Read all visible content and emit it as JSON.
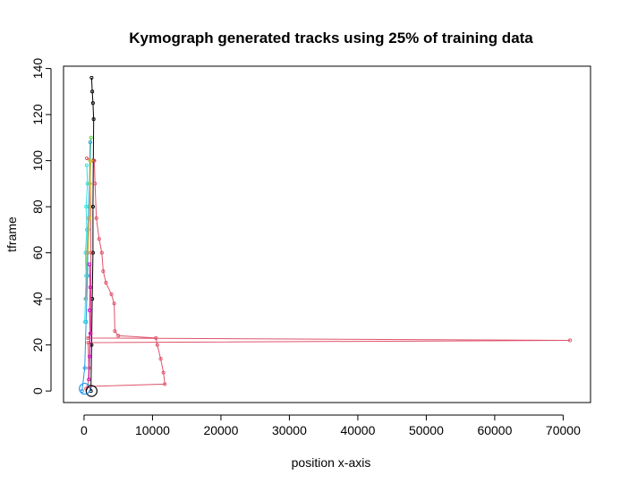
{
  "chart_data": {
    "type": "line",
    "title": "Kymograph generated tracks using 25% of training data",
    "xlabel": "position x-axis",
    "ylabel": "tframe",
    "xlim": [
      -3000,
      74000
    ],
    "ylim": [
      -5,
      141
    ],
    "xticks": [
      "0",
      "10000",
      "20000",
      "30000",
      "40000",
      "50000",
      "60000",
      "70000"
    ],
    "yticks": [
      "0",
      "20",
      "40",
      "60",
      "80",
      "100",
      "120",
      "140"
    ],
    "grid": false,
    "legend": "none",
    "series": [
      {
        "color": "#000000",
        "points": [
          [
            1000,
            0
          ],
          [
            1100,
            20
          ],
          [
            1200,
            40
          ],
          [
            1300,
            60
          ],
          [
            1300,
            80
          ],
          [
            1350,
            100
          ],
          [
            1400,
            118
          ],
          [
            1300,
            125
          ],
          [
            1200,
            130
          ],
          [
            1100,
            136
          ]
        ]
      },
      {
        "color": "#DF536B",
        "points": [
          [
            300,
            1
          ],
          [
            800,
            2
          ],
          [
            11800,
            3
          ],
          [
            11600,
            8
          ],
          [
            11200,
            14
          ],
          [
            10700,
            20
          ],
          [
            10500,
            23
          ],
          [
            5000,
            24
          ],
          [
            4500,
            26
          ],
          [
            4400,
            38
          ],
          [
            4000,
            42
          ],
          [
            3200,
            47
          ],
          [
            2800,
            52
          ],
          [
            2600,
            60
          ],
          [
            2200,
            66
          ],
          [
            1800,
            75
          ],
          [
            1600,
            90
          ],
          [
            1500,
            100
          ],
          [
            400,
            101
          ],
          [
            900,
            100
          ],
          [
            1000,
            60
          ],
          [
            1000,
            25
          ],
          [
            600,
            23
          ],
          [
            71000,
            22
          ],
          [
            600,
            21
          ],
          [
            700,
            10
          ],
          [
            600,
            2
          ]
        ]
      },
      {
        "color": "#61D04F",
        "points": [
          [
            200,
            40
          ],
          [
            400,
            60
          ],
          [
            700,
            80
          ],
          [
            900,
            100
          ],
          [
            1000,
            110
          ]
        ]
      },
      {
        "color": "#2297E6",
        "points": [
          [
            -300,
            0
          ],
          [
            100,
            10
          ],
          [
            300,
            30
          ],
          [
            500,
            50
          ],
          [
            600,
            70
          ],
          [
            800,
            90
          ],
          [
            900,
            108
          ]
        ]
      },
      {
        "color": "#28E2E5",
        "points": [
          [
            100,
            30
          ],
          [
            200,
            40
          ],
          [
            300,
            50
          ],
          [
            200,
            60
          ],
          [
            400,
            70
          ],
          [
            300,
            80
          ],
          [
            500,
            90
          ],
          [
            400,
            98
          ]
        ]
      },
      {
        "color": "#CD0BBC",
        "points": [
          [
            700,
            5
          ],
          [
            800,
            15
          ],
          [
            900,
            25
          ],
          [
            800,
            35
          ],
          [
            900,
            45
          ],
          [
            800,
            55
          ]
        ]
      },
      {
        "color": "#F5C710",
        "points": [
          [
            600,
            60
          ],
          [
            800,
            75
          ],
          [
            900,
            90
          ],
          [
            1000,
            100
          ]
        ]
      },
      {
        "color": "#9E9E9E",
        "points": [
          [
            300,
            40
          ],
          [
            500,
            60
          ],
          [
            600,
            75
          ]
        ]
      }
    ],
    "markers": [
      {
        "x": 1100,
        "y": 0,
        "shape": "circle",
        "color": "#000000"
      },
      {
        "x": 100,
        "y": 1,
        "shape": "circle",
        "color": "#2297E6"
      }
    ]
  }
}
